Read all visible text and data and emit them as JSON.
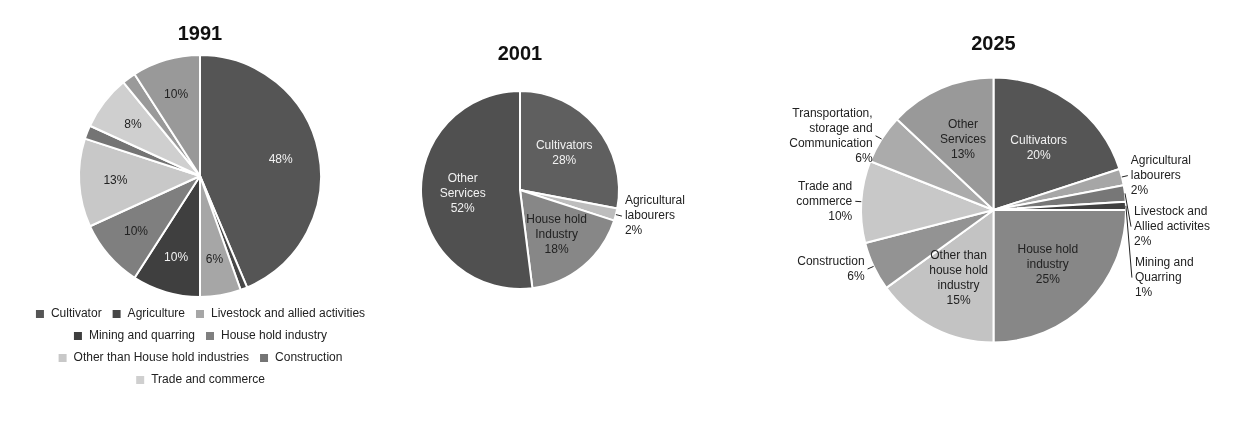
{
  "chart_data": [
    {
      "type": "pie",
      "title": "1991",
      "legend": "bottom",
      "categories": [
        "Cultivator",
        "Agriculture",
        "Livestock and allied activities",
        "Mining and quarring",
        "House hold industry",
        "Other than House hold industries",
        "Construction",
        "Trade and commerce",
        null,
        null
      ],
      "values": [
        48,
        1,
        6,
        10,
        10,
        13,
        2,
        8,
        2,
        10
      ],
      "colors": [
        "#555555",
        "#474747",
        "#a6a6a6",
        "#3f3f3f",
        "#7f7f7f",
        "#c8c8c8",
        "#747474",
        "#cfcfcf",
        "#9a9a9a",
        "#999999"
      ],
      "value_labels": [
        "48%",
        null,
        "6%",
        "10%",
        "10%",
        "13%",
        null,
        "8%",
        null,
        "10%"
      ]
    },
    {
      "type": "pie",
      "title": "2001",
      "legend": false,
      "categories": [
        "Cultivators",
        "Agricultural labourers",
        "House hold Industry",
        "Other Services"
      ],
      "values": [
        28,
        2,
        18,
        52
      ],
      "colors": [
        "#5f5f5f",
        "#bdbdbd",
        "#878787",
        "#505050"
      ],
      "value_labels": [
        "28%",
        "2%",
        "18%",
        "52%"
      ]
    },
    {
      "type": "pie",
      "title": "2025",
      "legend": false,
      "categories": [
        "Cultivators",
        "Agricultural labourers",
        "Livestock and Allied activites",
        "Mining and Quarring",
        "House hold industry",
        "Other than house hold industry",
        "Construction",
        "Trade and commerce",
        "Transportation, storage and Communication",
        "Other Services"
      ],
      "values": [
        20,
        2,
        2,
        1,
        25,
        15,
        6,
        10,
        6,
        13
      ],
      "colors": [
        "#555555",
        "#a6a6a6",
        "#777777",
        "#404040",
        "#878787",
        "#c3c3c3",
        "#939393",
        "#c8c8c8",
        "#ababab",
        "#999999"
      ],
      "value_labels": [
        "20%",
        "2%",
        "2%",
        "1%",
        "25%",
        "15%",
        "6%",
        "10%",
        "6%",
        "13%"
      ]
    }
  ]
}
